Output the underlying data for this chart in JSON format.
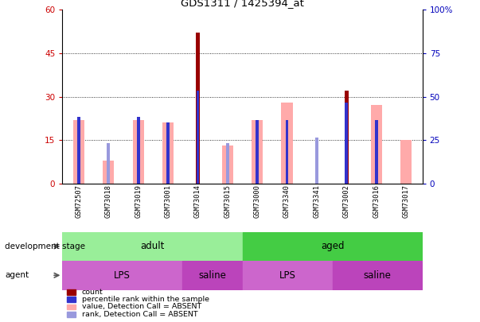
{
  "title": "GDS1311 / 1425394_at",
  "samples": [
    "GSM72507",
    "GSM73018",
    "GSM73019",
    "GSM73001",
    "GSM73014",
    "GSM73015",
    "GSM73000",
    "GSM73340",
    "GSM73341",
    "GSM73002",
    "GSM73016",
    "GSM73017"
  ],
  "count_values": [
    0,
    0,
    0,
    0,
    52,
    0,
    0,
    0,
    0,
    32,
    0,
    0
  ],
  "pink_bar_values": [
    22,
    8,
    22,
    21,
    0,
    13,
    22,
    28,
    0,
    0,
    27,
    15
  ],
  "blue_dot_values_left": [
    23,
    0,
    23,
    21,
    32,
    0,
    22,
    22,
    0,
    28,
    22,
    0
  ],
  "blue_dot_absent_values_left": [
    0,
    14,
    0,
    0,
    0,
    14,
    0,
    0,
    16,
    0,
    0,
    0
  ],
  "ylim_left": [
    0,
    60
  ],
  "ylim_right": [
    0,
    100
  ],
  "yticks_left": [
    0,
    15,
    30,
    45,
    60
  ],
  "yticks_right": [
    0,
    25,
    50,
    75,
    100
  ],
  "adult_color": "#99EE99",
  "aged_color": "#44CC44",
  "lps_color": "#CC66CC",
  "saline_color": "#BB44BB",
  "bg_color": "#C8C8C8",
  "count_color": "#990000",
  "pink_bar_color": "#FFAAAA",
  "blue_dot_color": "#3333CC",
  "blue_absent_color": "#9999DD",
  "left_axis_color": "#CC0000",
  "right_axis_color": "#0000BB"
}
